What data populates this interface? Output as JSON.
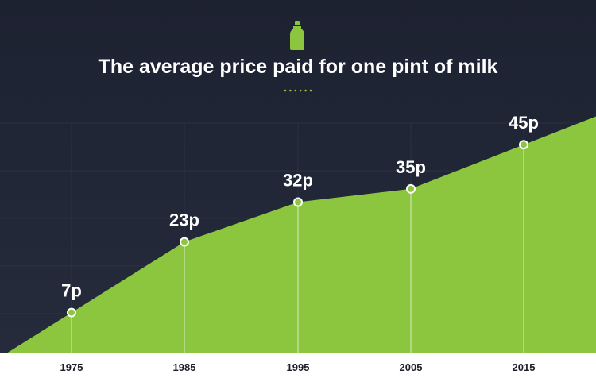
{
  "chart_data": {
    "type": "area",
    "title": "The average price paid for one pint of milk",
    "icon": "milk-bottle-icon",
    "x": [
      "1975",
      "1985",
      "1995",
      "2005",
      "2015"
    ],
    "values": [
      7,
      23,
      32,
      35,
      45
    ],
    "data_labels": [
      "7p",
      "23p",
      "32p",
      "35p",
      "45p"
    ],
    "unit": "p",
    "xlabel": "",
    "ylabel": "",
    "grid": true,
    "colors": {
      "background": "#1f2433",
      "area": "#8cc63f",
      "accent": "#8cc63f",
      "text": "#ffffff",
      "axis_band": "#ffffff",
      "tick_text": "#1b1f2a"
    }
  }
}
